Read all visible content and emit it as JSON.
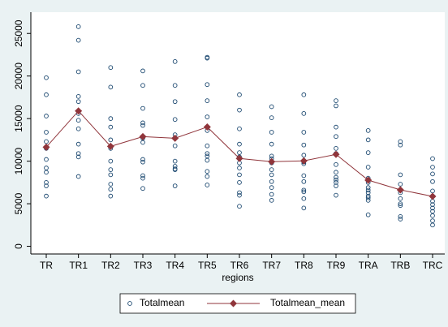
{
  "chart_data": {
    "type": "scatter-line",
    "x_label": "regions",
    "categories": [
      "TR",
      "TR1",
      "TR2",
      "TR3",
      "TR4",
      "TR5",
      "TR6",
      "TR7",
      "TR8",
      "TR9",
      "TRA",
      "TRB",
      "TRC"
    ],
    "series": [
      {
        "name": "Totalmean",
        "type": "scatter",
        "color": "#1a476f",
        "values": [
          [
            19800,
            17800,
            15300,
            13400,
            12300,
            11500,
            10200,
            9200,
            8700,
            7500,
            7100,
            5900
          ],
          [
            25800,
            24200,
            20500,
            17600,
            17000,
            15600,
            14800,
            13800,
            12000,
            10900,
            10500,
            8200
          ],
          [
            21000,
            18700,
            15000,
            14000,
            12500,
            11500,
            10000,
            9000,
            8400,
            7300,
            6700,
            5900
          ],
          [
            20600,
            18900,
            16200,
            14500,
            14200,
            12700,
            12200,
            10200,
            9900,
            8300,
            8000,
            6800
          ],
          [
            21700,
            18900,
            17000,
            14900,
            13100,
            11800,
            10000,
            9400,
            9100,
            9000,
            7100
          ],
          [
            22200,
            22100,
            19000,
            17100,
            15200,
            13600,
            11800,
            10900,
            10600,
            10100,
            8800,
            8200,
            7200
          ],
          [
            17800,
            16000,
            13800,
            12000,
            11000,
            10500,
            9800,
            9200,
            8400,
            7500,
            6300,
            6000,
            4700
          ],
          [
            16400,
            15100,
            13400,
            12000,
            10600,
            10300,
            9800,
            9000,
            8400,
            7600,
            6900,
            6100,
            5400
          ],
          [
            17800,
            15600,
            13400,
            11900,
            10700,
            9900,
            9700,
            8300,
            7600,
            6600,
            6400,
            5600,
            4500
          ],
          [
            17100,
            16500,
            14000,
            12900,
            11500,
            10900,
            9600,
            8700,
            8100,
            7800,
            7500,
            7100,
            6000
          ],
          [
            13600,
            12500,
            11000,
            9300,
            8000,
            7500,
            6900,
            6600,
            6300,
            5900,
            5700,
            5400,
            3700
          ],
          [
            12300,
            11900,
            8400,
            7300,
            6600,
            6300,
            5600,
            5000,
            4800,
            3500,
            3200
          ],
          [
            10300,
            9300,
            8500,
            7600,
            6500,
            5900,
            5300,
            4900,
            4500,
            4100,
            3600,
            3000,
            2500
          ]
        ]
      },
      {
        "name": "Totalmean_mean",
        "type": "line",
        "color": "#90353b",
        "values": [
          11650,
          15900,
          11740,
          12880,
          12690,
          14015,
          10320,
          9940,
          10040,
          10800,
          7770,
          6630,
          5870
        ]
      }
    ],
    "ylim": [
      -900,
      27500
    ],
    "yticks": [
      0,
      5000,
      10000,
      15000,
      20000,
      25000
    ],
    "grid": false,
    "legend": "bottom"
  }
}
